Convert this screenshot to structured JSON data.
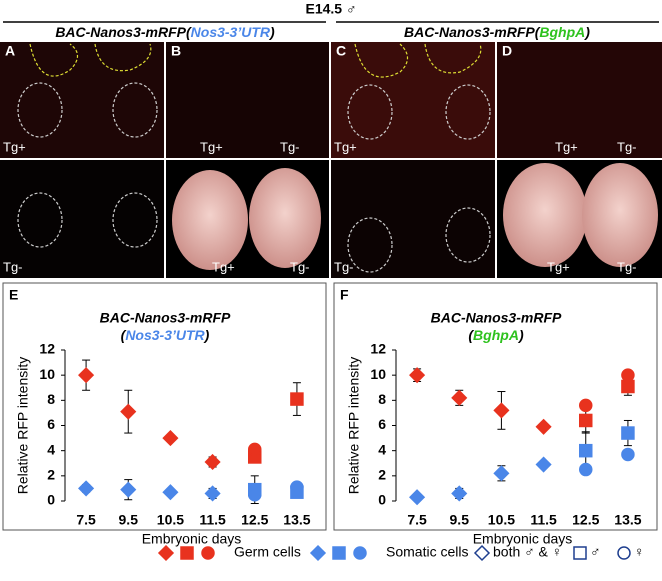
{
  "header": {
    "title": "E14.5 ♂"
  },
  "panel_titles": [
    {
      "prefix": "BAC-Nanos3-mRFP(",
      "highlight": "Nos3-3’UTR",
      "suffix": ")",
      "color": "#4a86e8"
    },
    {
      "prefix": "BAC-Nanos3-mRFP(",
      "highlight": "BghpA",
      "suffix": ")",
      "color": "#2ec21e"
    }
  ],
  "photos": [
    {
      "letter": "A",
      "top": [
        "Tg+"
      ],
      "bottom": [
        "Tg-"
      ]
    },
    {
      "letter": "B",
      "top": [
        "Tg+",
        "Tg-"
      ],
      "bottom": [
        "Tg+",
        "Tg-"
      ]
    },
    {
      "letter": "C",
      "top": [
        "Tg+"
      ],
      "bottom": [
        "Tg-"
      ]
    },
    {
      "letter": "D",
      "top": [
        "Tg+",
        "Tg-"
      ],
      "bottom": [
        "Tg+",
        "Tg-"
      ]
    }
  ],
  "chart_data": [
    {
      "type": "scatter",
      "letter": "E",
      "title": "BAC-Nanos3-mRFP",
      "subtitle": {
        "prefix": "(",
        "highlight": "Nos3-3’UTR",
        "suffix": ")",
        "color": "#4a86e8"
      },
      "x_label": "Embryonic days",
      "y_label": "Relative RFP intensity",
      "categories": [
        "7.5",
        "9.5",
        "10.5",
        "11.5",
        "12.5",
        "13.5"
      ],
      "ylim": [
        0,
        12
      ],
      "yticks": [
        0,
        2,
        4,
        6,
        8,
        10,
        12
      ],
      "series": [
        {
          "marker": "diamond",
          "color": "#e8321e",
          "values": [
            10,
            7.1,
            5,
            3.1,
            null,
            null
          ],
          "errors": [
            1.2,
            1.7,
            null,
            0.4,
            null,
            null
          ]
        },
        {
          "marker": "square",
          "color": "#e8321e",
          "values": [
            null,
            null,
            null,
            null,
            3.5,
            8.1
          ],
          "errors": [
            null,
            null,
            null,
            null,
            null,
            1.3
          ]
        },
        {
          "marker": "circle",
          "color": "#e8321e",
          "values": [
            null,
            null,
            null,
            null,
            4.1,
            null
          ],
          "errors": [
            null,
            null,
            null,
            null,
            null,
            null
          ]
        },
        {
          "marker": "diamond",
          "color": "#4a86e8",
          "values": [
            1.0,
            0.9,
            0.7,
            0.6,
            null,
            null
          ],
          "errors": [
            0.3,
            0.8,
            null,
            0.4,
            null,
            null
          ]
        },
        {
          "marker": "square",
          "color": "#4a86e8",
          "values": [
            null,
            null,
            null,
            null,
            0.9,
            0.7
          ],
          "errors": [
            null,
            null,
            null,
            null,
            1.1,
            null
          ]
        },
        {
          "marker": "circle",
          "color": "#4a86e8",
          "values": [
            null,
            null,
            null,
            null,
            0.5,
            1.1
          ],
          "errors": [
            null,
            null,
            null,
            null,
            null,
            null
          ]
        }
      ]
    },
    {
      "type": "scatter",
      "letter": "F",
      "title": "BAC-Nanos3-mRFP",
      "subtitle": {
        "prefix": "(",
        "highlight": "BghpA",
        "suffix": ")",
        "color": "#2ec21e"
      },
      "x_label": "Embryonic days",
      "y_label": "Relative RFP intensity",
      "categories": [
        "7.5",
        "9.5",
        "10.5",
        "11.5",
        "12.5",
        "13.5"
      ],
      "ylim": [
        0,
        12
      ],
      "yticks": [
        0,
        2,
        4,
        6,
        8,
        10,
        12
      ],
      "series": [
        {
          "marker": "diamond",
          "color": "#e8321e",
          "values": [
            10,
            8.2,
            7.2,
            5.9,
            null,
            null
          ],
          "errors": [
            0.5,
            0.6,
            1.5,
            null,
            null,
            null
          ]
        },
        {
          "marker": "square",
          "color": "#e8321e",
          "values": [
            null,
            null,
            null,
            null,
            6.4,
            9.1
          ],
          "errors": [
            null,
            null,
            null,
            null,
            1.0,
            0.7
          ]
        },
        {
          "marker": "circle",
          "color": "#e8321e",
          "values": [
            null,
            null,
            null,
            null,
            7.6,
            10
          ],
          "errors": [
            null,
            null,
            null,
            null,
            null,
            null
          ]
        },
        {
          "marker": "diamond",
          "color": "#4a86e8",
          "values": [
            0.3,
            0.6,
            2.2,
            2.9,
            null,
            null
          ],
          "errors": [
            null,
            0.4,
            0.6,
            null,
            null,
            null
          ]
        },
        {
          "marker": "square",
          "color": "#4a86e8",
          "values": [
            null,
            null,
            null,
            null,
            4.0,
            5.4
          ],
          "errors": [
            null,
            null,
            null,
            null,
            1.5,
            1.0
          ]
        },
        {
          "marker": "circle",
          "color": "#4a86e8",
          "values": [
            null,
            null,
            null,
            null,
            2.5,
            3.7
          ],
          "errors": [
            null,
            null,
            null,
            null,
            null,
            null
          ]
        }
      ]
    }
  ],
  "legend": {
    "germ": "Germ cells",
    "somatic": "Somatic cells",
    "both": "both ♂ & ♀",
    "male": "♂",
    "female": "♀",
    "germ_color": "#e8321e",
    "somatic_color": "#4a86e8"
  }
}
